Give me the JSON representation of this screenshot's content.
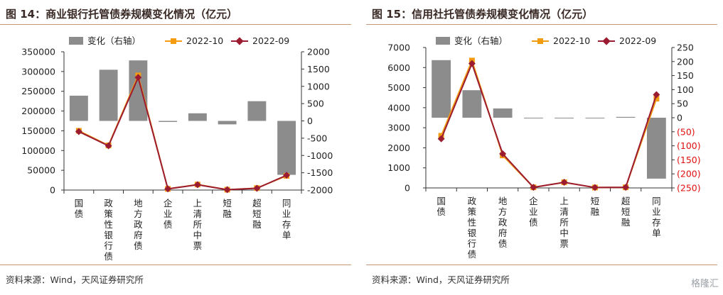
{
  "charts": {
    "left": {
      "title": "图 14：商业银行托管债券规模变化情况（亿元）",
      "source": "资料来源：Wind，天风证券研究所"
    },
    "right": {
      "title": "图 15：信用社托管债券规模变化情况（亿元）",
      "source": "资料来源：Wind，天风证券研究所"
    }
  },
  "watermark": "格隆汇",
  "colors": {
    "bar": "#8c8c8c",
    "line_2022_10": "#f39c12",
    "line_2022_09": "#9b1b30",
    "negative_tick": "#e01010",
    "rule": "#c79a7a"
  },
  "chart_data": [
    {
      "type": "bar+line",
      "title": "图 14：商业银行托管债券规模变化情况（亿元）",
      "categories": [
        "国债",
        "政策性银行债",
        "地方政府债",
        "企业债",
        "上清所中票",
        "短融",
        "超短融",
        "同业存单"
      ],
      "legend": [
        "变化（右轴）",
        "2022-10",
        "2022-09"
      ],
      "legend_position": "top",
      "yleft": {
        "range": [
          0,
          350000
        ],
        "ticks": [
          "0",
          "50000",
          "100000",
          "150000",
          "200000",
          "250000",
          "300000",
          "350000"
        ]
      },
      "yright": {
        "range": [
          -2000,
          2000
        ],
        "ticks": [
          "-2000",
          "-1500",
          "-1000",
          "-500",
          "0",
          "500",
          "1000",
          "1500",
          "2000"
        ]
      },
      "series": [
        {
          "name": "变化（右轴）",
          "type": "bar",
          "axis": "right",
          "values": [
            730,
            1480,
            1750,
            -30,
            220,
            -100,
            570,
            -1560
          ]
        },
        {
          "name": "2022-10",
          "type": "line",
          "axis": "left",
          "values": [
            150000,
            113000,
            290000,
            3000,
            14000,
            1000,
            5000,
            36000
          ]
        },
        {
          "name": "2022-09",
          "type": "line",
          "axis": "left",
          "values": [
            148000,
            112000,
            285000,
            3000,
            13500,
            1000,
            4500,
            37500
          ]
        }
      ],
      "grid": false
    },
    {
      "type": "bar+line",
      "title": "图 15：信用社托管债券规模变化情况（亿元）",
      "categories": [
        "国债",
        "政策性银行债",
        "地方政府债",
        "企业债",
        "上清所中票",
        "短融",
        "超短融",
        "同业存单"
      ],
      "legend": [
        "变化（右轴）",
        "2022-10",
        "2022-09"
      ],
      "legend_position": "top",
      "yleft": {
        "range": [
          0,
          7000
        ],
        "ticks": [
          "0",
          "1000",
          "2000",
          "3000",
          "4000",
          "5000",
          "6000",
          "7000"
        ]
      },
      "yright": {
        "range": [
          -250,
          250
        ],
        "ticks": [
          "(250)",
          "(200)",
          "(150)",
          "(100)",
          "(50)",
          "0",
          "50",
          "100",
          "150",
          "200",
          "250"
        ]
      },
      "series": [
        {
          "name": "变化（右轴）",
          "type": "bar",
          "axis": "right",
          "values": [
            205,
            98,
            33,
            -1,
            -2,
            -1,
            3,
            -217
          ]
        },
        {
          "name": "2022-10",
          "type": "line",
          "axis": "left",
          "values": [
            2600,
            6350,
            1620,
            30,
            280,
            20,
            30,
            4450
          ]
        },
        {
          "name": "2022-09",
          "type": "line",
          "axis": "left",
          "values": [
            2450,
            6200,
            1700,
            30,
            280,
            20,
            30,
            4650
          ]
        }
      ],
      "grid": false
    }
  ]
}
